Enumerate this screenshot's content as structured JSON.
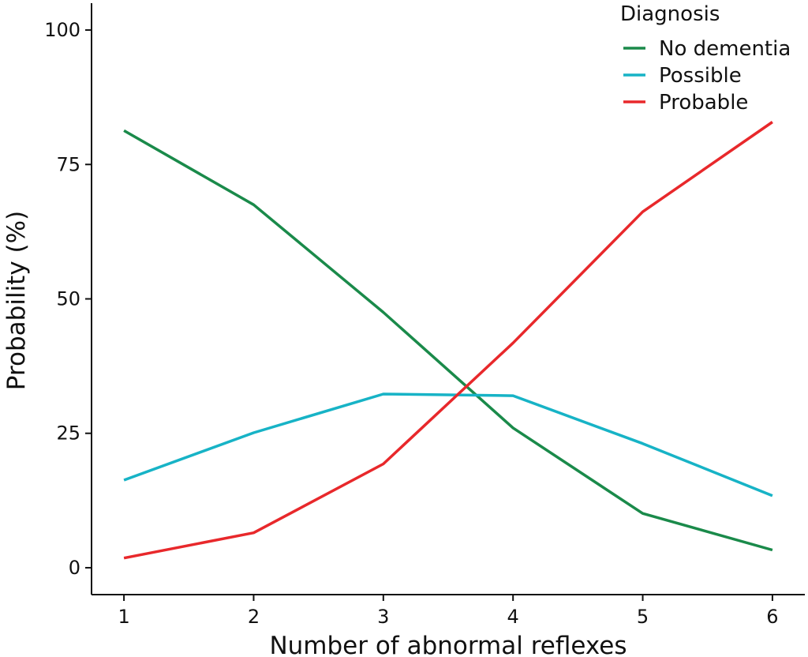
{
  "chart_data": {
    "type": "line",
    "title": "",
    "xlabel": "Number of abnormal reflexes",
    "ylabel": "Probability (%)",
    "x": [
      1,
      2,
      3,
      4,
      5,
      6
    ],
    "xlim": [
      0.75,
      6.25
    ],
    "ylim": [
      -5,
      105
    ],
    "x_ticks": [
      1,
      2,
      3,
      4,
      5,
      6
    ],
    "y_ticks": [
      0,
      25,
      50,
      75,
      100
    ],
    "x_tick_labels": [
      "1",
      "2",
      "3",
      "4",
      "5",
      "6"
    ],
    "y_tick_labels": [
      "0",
      "25",
      "50",
      "75",
      "100"
    ],
    "grid": false,
    "legend": {
      "title": "Diagnosis",
      "position": "top-right"
    },
    "series": [
      {
        "name": "No dementia",
        "color": "#1A8A4A",
        "values": [
          81.3,
          67.5,
          47.5,
          26.0,
          10.1,
          3.3
        ]
      },
      {
        "name": "Possible",
        "color": "#17B3C6",
        "values": [
          16.3,
          25.1,
          32.3,
          32.0,
          23.1,
          13.4
        ]
      },
      {
        "name": "Probable",
        "color": "#E8282B",
        "values": [
          1.8,
          6.5,
          19.3,
          41.8,
          66.2,
          82.9
        ]
      }
    ]
  }
}
